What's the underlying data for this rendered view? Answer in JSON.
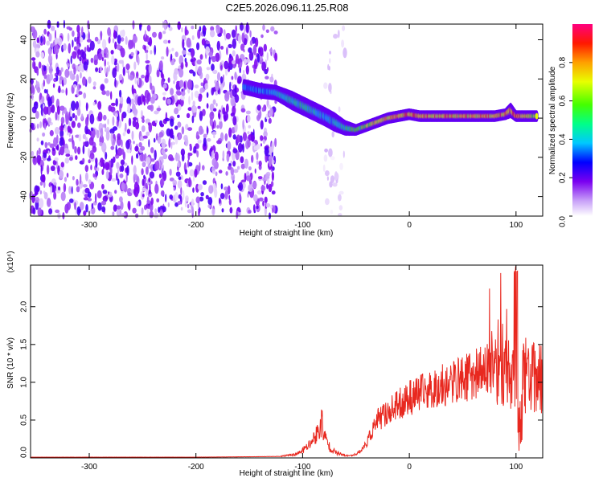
{
  "title": "C2E5.2026.096.11.25.R08",
  "colors": {
    "snr_line": "#e8281f",
    "background": "#ffffff",
    "scatter": "#8a2be2",
    "frame": "#000000"
  },
  "chart_data": [
    {
      "type": "heatmap",
      "xlabel": "Height of straight line (km)",
      "ylabel": "Frequency (Hz)",
      "xlim": [
        -355,
        125
      ],
      "ylim": [
        -50,
        48
      ],
      "xticks": [
        -300,
        -200,
        -100,
        0,
        100
      ],
      "yticks": [
        -40,
        -20,
        0,
        20,
        40
      ],
      "grid": false,
      "colorbar": {
        "label": "Normalized spectral amplitude",
        "range": [
          0,
          1
        ],
        "ticks": [
          0.0,
          0.2,
          0.4,
          0.6,
          0.8
        ],
        "tick_labels": [
          "0.0",
          "0.2",
          "0.4",
          "0.6",
          "0.8"
        ]
      },
      "regions": [
        {
          "kind": "noise",
          "x_range": [
            -355,
            -125
          ],
          "y_range": [
            -50,
            48
          ],
          "level": 0.15
        },
        {
          "kind": "sparse",
          "x_range": [
            -80,
            -60
          ],
          "y_range": [
            -50,
            48
          ],
          "level": 0.05
        }
      ],
      "ridge": {
        "x": [
          -155,
          -140,
          -125,
          -110,
          -95,
          -80,
          -70,
          -60,
          -50,
          -40,
          -30,
          -20,
          -10,
          0,
          10,
          20,
          30,
          40,
          50,
          60,
          70,
          80,
          90,
          95,
          100,
          110,
          120
        ],
        "y": [
          16,
          14,
          13,
          9,
          5,
          1,
          -2,
          -5,
          -6,
          -4,
          -2,
          0,
          1,
          2,
          1,
          1,
          1,
          1,
          1,
          1,
          1,
          1,
          2,
          4,
          1,
          1,
          1
        ],
        "half_width": [
          4,
          4,
          4,
          5,
          5,
          5,
          5,
          4,
          3,
          3,
          3,
          3,
          3,
          3,
          3,
          3,
          3,
          3,
          3,
          3,
          3,
          3,
          3,
          4,
          3,
          3,
          3
        ],
        "peak_amplitude": [
          0.35,
          0.35,
          0.4,
          0.45,
          0.45,
          0.4,
          0.4,
          0.45,
          0.55,
          0.6,
          0.7,
          0.75,
          0.75,
          0.8,
          0.75,
          0.75,
          0.75,
          0.75,
          0.75,
          0.75,
          0.75,
          0.75,
          0.75,
          0.8,
          0.85,
          0.7,
          0.6
        ]
      }
    },
    {
      "type": "line",
      "xlabel": "Height of straight line (km)",
      "ylabel": "SNR (10 * v/v)",
      "y_multiplier_label": "(x10⁴)",
      "xlim": [
        -355,
        125
      ],
      "ylim": [
        0,
        2.55
      ],
      "xticks": [
        -300,
        -200,
        -100,
        0,
        100
      ],
      "yticks": [
        0.0,
        0.5,
        1.0,
        1.5,
        2.0
      ],
      "ytick_labels": [
        "0.0",
        "0.5",
        "1.0",
        "1.5",
        "2.0"
      ],
      "grid": false,
      "series": [
        {
          "x": [
            -355,
            -300,
            -250,
            -200,
            -150,
            -120,
            -105,
            -95,
            -90,
            -85,
            -82,
            -80,
            -75,
            -70,
            -65,
            -60,
            -55,
            -50,
            -45,
            -40,
            -35,
            -30,
            -25,
            -20,
            -15,
            -10,
            -5,
            0,
            10,
            20,
            30,
            40,
            50,
            60,
            70,
            80,
            85,
            90,
            95,
            100,
            103,
            106,
            110,
            115,
            120,
            125
          ],
          "y": [
            0.01,
            0.01,
            0.01,
            0.01,
            0.015,
            0.02,
            0.05,
            0.15,
            0.25,
            0.35,
            0.5,
            0.3,
            0.15,
            0.08,
            0.05,
            0.03,
            0.03,
            0.05,
            0.1,
            0.2,
            0.35,
            0.5,
            0.55,
            0.6,
            0.65,
            0.7,
            0.75,
            0.8,
            0.85,
            0.9,
            0.95,
            1.0,
            1.05,
            1.1,
            1.15,
            1.2,
            1.3,
            1.2,
            1.1,
            1.0,
            0.3,
            1.1,
            1.05,
            1.05,
            1.05,
            1.05
          ]
        }
      ]
    }
  ]
}
